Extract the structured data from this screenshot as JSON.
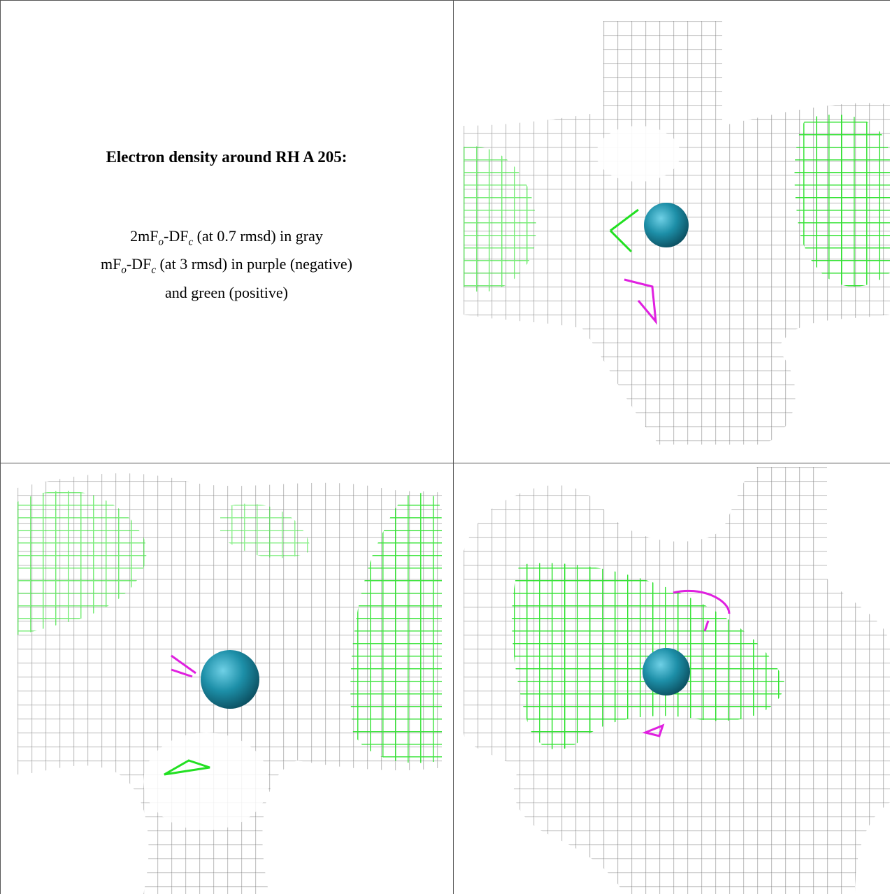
{
  "figure": {
    "title": "Electron density around RH A 205:",
    "legend": [
      [
        "2mF",
        "o",
        "-DF",
        "c",
        " (at 0.7 rmsd) in gray"
      ],
      [
        "mF",
        "o",
        "-DF",
        "c",
        " (at 3 rmsd) in purple (negative)"
      ],
      [
        "and green (positive)"
      ]
    ]
  }
}
